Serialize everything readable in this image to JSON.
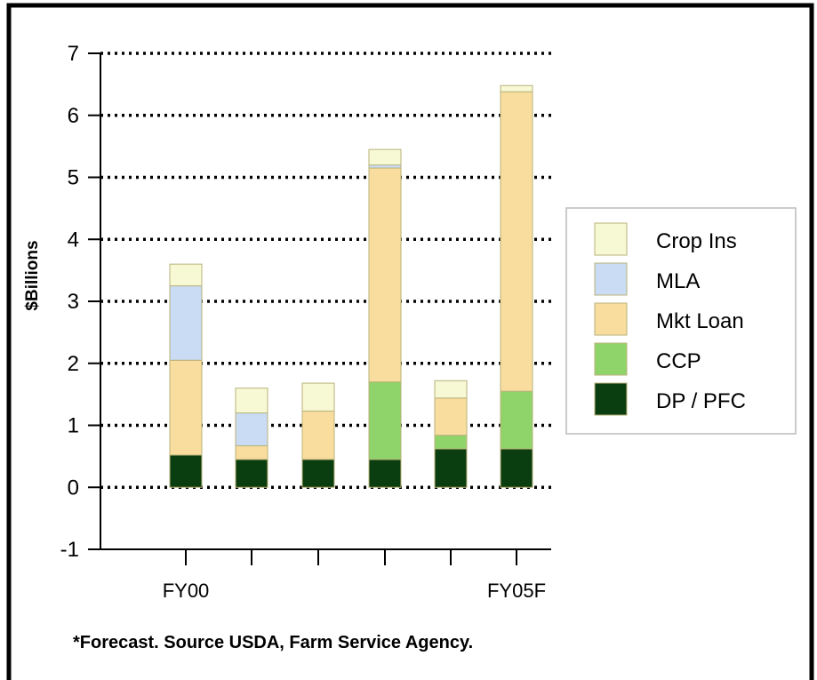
{
  "chart_data": {
    "type": "bar",
    "stacked": true,
    "title": "",
    "xlabel": "",
    "ylabel": "$Billions",
    "ylim": [
      -1,
      7
    ],
    "yticks": [
      -1,
      0,
      1,
      2,
      3,
      4,
      5,
      6,
      7
    ],
    "grid": "horizontal dotted",
    "legend_position": "right",
    "categories": [
      "FY00",
      "",
      "",
      "",
      "",
      "FY05F"
    ],
    "series": [
      {
        "name": "DP / PFC",
        "color": "#0a3d0f",
        "values": [
          0.52,
          0.45,
          0.45,
          0.45,
          0.62,
          0.62
        ]
      },
      {
        "name": "CCP",
        "color": "#8fd46a",
        "values": [
          0,
          0,
          0,
          1.25,
          0.22,
          0.93
        ]
      },
      {
        "name": "Mkt Loan",
        "color": "#f9dd9e",
        "values": [
          1.53,
          0.22,
          0.78,
          3.45,
          0.6,
          4.83
        ]
      },
      {
        "name": "MLA",
        "color": "#c9dcf3",
        "values": [
          1.2,
          0.53,
          0,
          0.05,
          0,
          0
        ]
      },
      {
        "name": "Crop Ins",
        "color": "#f7f9d4",
        "values": [
          0.35,
          0.4,
          0.45,
          0.25,
          0.28,
          0.1
        ]
      }
    ],
    "legend_order": [
      "Crop Ins",
      "MLA",
      "Mkt Loan",
      "CCP",
      "DP / PFC"
    ],
    "footnote": "*Forecast. Source USDA, Farm Service Agency."
  }
}
